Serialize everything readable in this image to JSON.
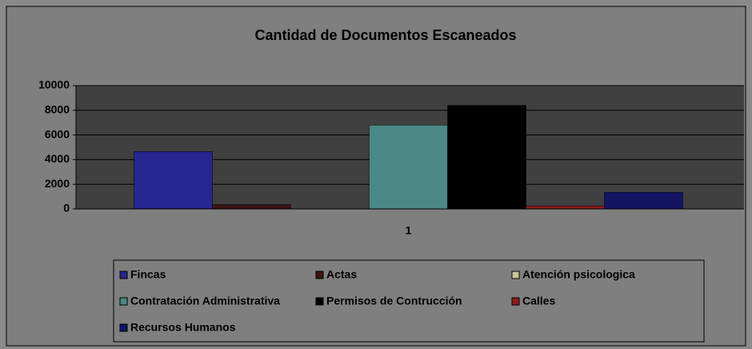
{
  "chart_data": {
    "type": "bar",
    "title": "Cantidad de Documentos Escaneados",
    "categories": [
      "1"
    ],
    "series": [
      {
        "name": "Fincas",
        "color": "#262690",
        "values": [
          4650
        ]
      },
      {
        "name": "Actas",
        "color": "#3c1414",
        "values": [
          350
        ]
      },
      {
        "name": "Atención psicologica",
        "color": "#c8c896",
        "values": [
          0
        ]
      },
      {
        "name": "Contratación Administrativa",
        "color": "#4c8888",
        "values": [
          6800
        ]
      },
      {
        "name": "Permisos de Contrucción",
        "color": "#000000",
        "values": [
          8400
        ]
      },
      {
        "name": "Calles",
        "color": "#8c1c1c",
        "values": [
          250
        ]
      },
      {
        "name": "Recursos Humanos",
        "color": "#141464",
        "values": [
          1350
        ]
      }
    ],
    "ylim": [
      0,
      10000
    ],
    "yticks": [
      0,
      2000,
      4000,
      6000,
      8000,
      10000
    ],
    "grid": true,
    "legend": "bottom"
  }
}
